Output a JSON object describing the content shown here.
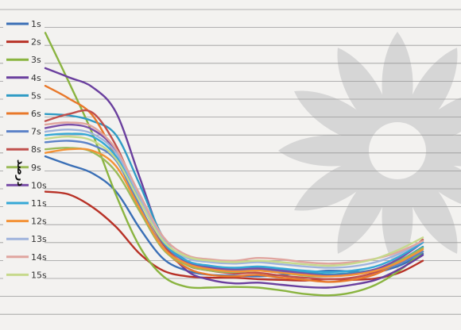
{
  "chart_data": {
    "type": "line",
    "title": "",
    "xlabel": "",
    "ylabel": "درصد",
    "grid": true,
    "legend_position": "left",
    "x": [
      0,
      1,
      2,
      3,
      4,
      5,
      6,
      7,
      8,
      9,
      10,
      11,
      12,
      13,
      14,
      15,
      16
    ],
    "series": [
      {
        "name": "1s",
        "color": "#3a6fb6",
        "values": [
          200,
          188,
          176,
          150,
          98,
          55,
          38,
          32,
          31,
          30,
          32,
          35,
          38,
          37,
          36,
          45,
          62
        ]
      },
      {
        "name": "2s",
        "color": "#b83227",
        "values": [
          150,
          146,
          128,
          100,
          62,
          38,
          30,
          28,
          28,
          26,
          25,
          24,
          26,
          25,
          27,
          35,
          52
        ]
      },
      {
        "name": "3s",
        "color": "#8ab440",
        "values": [
          375,
          305,
          232,
          145,
          72,
          30,
          15,
          14,
          15,
          14,
          10,
          5,
          3,
          7,
          18,
          38,
          65
        ]
      },
      {
        "name": "4s",
        "color": "#6a3f9e",
        "values": [
          325,
          312,
          298,
          262,
          170,
          80,
          38,
          25,
          20,
          21,
          18,
          15,
          14,
          18,
          25,
          40,
          60
        ]
      },
      {
        "name": "5s",
        "color": "#2f9bc4",
        "values": [
          260,
          258,
          250,
          230,
          160,
          85,
          52,
          44,
          42,
          43,
          40,
          36,
          33,
          35,
          40,
          52,
          72
        ]
      },
      {
        "name": "6s",
        "color": "#e8782a",
        "values": [
          300,
          282,
          258,
          198,
          130,
          70,
          42,
          32,
          30,
          32,
          28,
          25,
          22,
          25,
          33,
          50,
          70
        ]
      },
      {
        "name": "7s",
        "color": "#5c82c8",
        "values": [
          220,
          222,
          216,
          194,
          130,
          70,
          48,
          40,
          38,
          39,
          36,
          33,
          31,
          33,
          38,
          48,
          65
        ]
      },
      {
        "name": "8s",
        "color": "#c0504d",
        "values": [
          250,
          260,
          262,
          215,
          140,
          75,
          46,
          38,
          34,
          35,
          31,
          28,
          26,
          28,
          36,
          55,
          82
        ]
      },
      {
        "name": "9s",
        "color": "#9bbb59",
        "values": [
          210,
          212,
          206,
          178,
          122,
          68,
          46,
          38,
          36,
          38,
          35,
          31,
          30,
          33,
          40,
          52,
          70
        ]
      },
      {
        "name": "10s",
        "color": "#7a4fa8",
        "values": [
          240,
          245,
          238,
          208,
          140,
          78,
          50,
          42,
          40,
          41,
          38,
          34,
          31,
          33,
          40,
          55,
          78
        ]
      },
      {
        "name": "11s",
        "color": "#35a8d6",
        "values": [
          230,
          232,
          228,
          200,
          138,
          78,
          52,
          45,
          42,
          44,
          41,
          38,
          36,
          38,
          44,
          58,
          78
        ]
      },
      {
        "name": "12s",
        "color": "#f39237",
        "values": [
          205,
          210,
          208,
          186,
          126,
          70,
          48,
          40,
          37,
          38,
          35,
          32,
          30,
          32,
          38,
          50,
          68
        ]
      },
      {
        "name": "13s",
        "color": "#9fb3dc",
        "values": [
          235,
          238,
          232,
          205,
          142,
          82,
          56,
          50,
          48,
          50,
          47,
          44,
          42,
          44,
          50,
          62,
          80
        ]
      },
      {
        "name": "14s",
        "color": "#e0a59f",
        "values": [
          245,
          248,
          242,
          210,
          146,
          86,
          60,
          54,
          52,
          56,
          54,
          50,
          48,
          50,
          55,
          65,
          80
        ]
      },
      {
        "name": "15s",
        "color": "#c6d98c",
        "values": [
          225,
          228,
          222,
          196,
          136,
          80,
          58,
          52,
          50,
          52,
          50,
          47,
          45,
          48,
          55,
          68,
          85
        ]
      }
    ]
  }
}
